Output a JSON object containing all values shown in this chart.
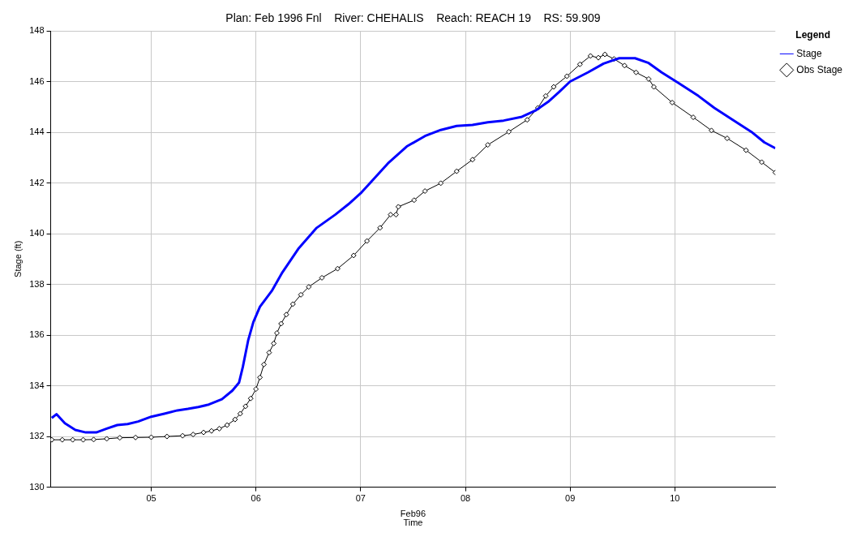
{
  "chart_data": {
    "type": "line",
    "title": "Plan: Feb 1996 Fnl    River: CHEHALIS    Reach: REACH 19    RS: 59.909",
    "xlabel": "Time",
    "ylabel": "Stage (ft)",
    "legend_title": "Legend",
    "annotations": [
      "Feb96"
    ],
    "xlim": [
      4.04,
      10.96
    ],
    "xticks": [
      {
        "value": 5,
        "label": "05"
      },
      {
        "value": 6,
        "label": "06"
      },
      {
        "value": 7,
        "label": "07"
      },
      {
        "value": 8,
        "label": "08"
      },
      {
        "value": 9,
        "label": "09"
      },
      {
        "value": 10,
        "label": "10"
      }
    ],
    "ylim": [
      130,
      148
    ],
    "yticks": [
      130,
      132,
      134,
      136,
      138,
      140,
      142,
      144,
      146,
      148
    ],
    "grid": true,
    "legend": "right",
    "line_style": "solid",
    "series": [
      {
        "name": "Stage",
        "color": "#0000ff",
        "marker": "none",
        "x": [
          4.05,
          4.095,
          4.175,
          4.275,
          4.375,
          4.475,
          4.575,
          4.675,
          4.775,
          4.875,
          5.0,
          5.125,
          5.25,
          5.35,
          5.45,
          5.55,
          5.675,
          5.775,
          5.838,
          5.875,
          5.925,
          5.975,
          6.038,
          6.151,
          6.252,
          6.404,
          6.58,
          6.757,
          6.883,
          7.009,
          7.11,
          7.26,
          7.44,
          7.614,
          7.765,
          7.917,
          8.068,
          8.214,
          8.365,
          8.54,
          8.667,
          8.79,
          8.893,
          9.0,
          9.17,
          9.32,
          9.47,
          9.62,
          9.75,
          9.874,
          10.025,
          10.226,
          10.377,
          10.553,
          10.73,
          10.855,
          10.96
        ],
        "values": [
          132.73,
          132.88,
          132.52,
          132.26,
          132.16,
          132.16,
          132.31,
          132.45,
          132.49,
          132.59,
          132.78,
          132.9,
          133.03,
          133.09,
          133.16,
          133.26,
          133.47,
          133.81,
          134.12,
          134.75,
          135.78,
          136.51,
          137.12,
          137.74,
          138.47,
          139.4,
          140.23,
          140.75,
          141.16,
          141.63,
          142.09,
          142.77,
          143.44,
          143.85,
          144.09,
          144.25,
          144.29,
          144.39,
          144.46,
          144.61,
          144.85,
          145.2,
          145.58,
          146.0,
          146.36,
          146.71,
          146.92,
          146.92,
          146.73,
          146.36,
          145.97,
          145.43,
          144.96,
          144.49,
          144.02,
          143.6,
          143.37
        ]
      },
      {
        "name": "Obs Stage",
        "color": "#000000",
        "marker": "diamond",
        "x": [
          4.05,
          4.15,
          4.25,
          4.35,
          4.45,
          4.575,
          4.7,
          4.85,
          5.0,
          5.15,
          5.3,
          5.4,
          5.5,
          5.575,
          5.65,
          5.725,
          5.8,
          5.85,
          5.9,
          5.95,
          6.0,
          6.038,
          6.076,
          6.126,
          6.17,
          6.2,
          6.24,
          6.29,
          6.353,
          6.429,
          6.504,
          6.63,
          6.78,
          6.933,
          7.06,
          7.185,
          7.286,
          7.337,
          7.36,
          7.51,
          7.614,
          7.765,
          7.917,
          8.068,
          8.214,
          8.415,
          8.59,
          8.692,
          8.767,
          8.843,
          8.97,
          9.094,
          9.195,
          9.27,
          9.333,
          9.42,
          9.52,
          9.63,
          9.75,
          9.8,
          9.975,
          10.176,
          10.35,
          10.5,
          10.68,
          10.83,
          10.96
        ],
        "values": [
          131.87,
          131.87,
          131.87,
          131.87,
          131.88,
          131.91,
          131.95,
          131.96,
          131.97,
          132.0,
          132.03,
          132.08,
          132.16,
          132.22,
          132.31,
          132.45,
          132.67,
          132.9,
          133.19,
          133.5,
          133.87,
          134.33,
          134.84,
          135.31,
          135.67,
          136.08,
          136.45,
          136.81,
          137.22,
          137.59,
          137.9,
          138.26,
          138.62,
          139.14,
          139.71,
          140.23,
          140.75,
          140.75,
          141.06,
          141.32,
          141.68,
          141.99,
          142.46,
          142.92,
          143.5,
          144.02,
          144.49,
          144.96,
          145.43,
          145.79,
          146.21,
          146.68,
          147.01,
          146.94,
          147.07,
          146.89,
          146.63,
          146.36,
          146.1,
          145.79,
          145.17,
          144.59,
          144.07,
          143.76,
          143.29,
          142.82,
          142.41
        ]
      }
    ]
  }
}
